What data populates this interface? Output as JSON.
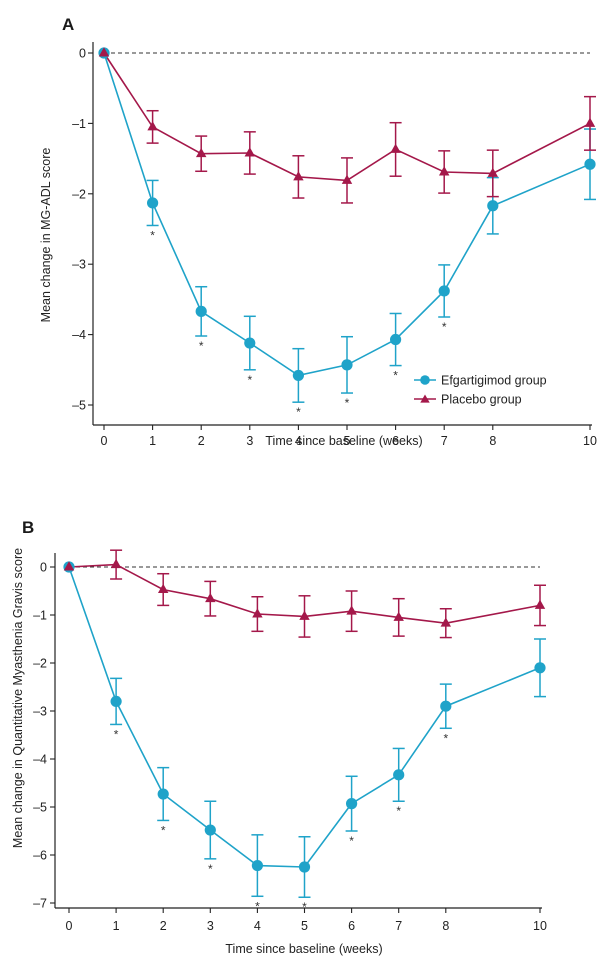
{
  "chart_data": [
    {
      "type": "line",
      "panel_label": "A",
      "xlabel": "Time since baseline (weeks)",
      "ylabel": "Mean change in MG-ADL score",
      "xlim": [
        0,
        10
      ],
      "ylim": [
        -5.3,
        0.1
      ],
      "xticks": [
        0,
        1,
        2,
        3,
        4,
        5,
        6,
        7,
        8,
        10
      ],
      "yticks": [
        0,
        -1,
        -2,
        -3,
        -4,
        -5
      ],
      "x": [
        0,
        1,
        2,
        3,
        4,
        5,
        6,
        7,
        8,
        10
      ],
      "reference_line": 0,
      "legend_position": "bottom-right",
      "series": [
        {
          "name": "Efgartigimod group",
          "color": "#1fa3c9",
          "marker": "circle",
          "values": [
            0,
            -2.13,
            -3.67,
            -4.12,
            -4.58,
            -4.43,
            -4.07,
            -3.38,
            -2.17,
            -1.58
          ],
          "error": [
            0,
            0.32,
            0.35,
            0.38,
            0.38,
            0.4,
            0.37,
            0.37,
            0.4,
            0.5
          ],
          "significant": [
            false,
            true,
            true,
            true,
            true,
            true,
            true,
            true,
            false,
            false
          ]
        },
        {
          "name": "Placebo group",
          "color": "#a4184a",
          "marker": "triangle",
          "values": [
            0,
            -1.05,
            -1.43,
            -1.42,
            -1.76,
            -1.81,
            -1.37,
            -1.69,
            -1.71,
            -1.0
          ],
          "error": [
            0,
            0.23,
            0.25,
            0.3,
            0.3,
            0.32,
            0.38,
            0.3,
            0.33,
            0.38
          ]
        }
      ]
    },
    {
      "type": "line",
      "panel_label": "B",
      "xlabel": "Time since baseline (weeks)",
      "ylabel": "Mean change in Quantitative Myasthenia Gravis score",
      "xlim": [
        0,
        10
      ],
      "ylim": [
        -7.4,
        0.1
      ],
      "xticks": [
        0,
        1,
        2,
        3,
        4,
        5,
        6,
        7,
        8,
        10
      ],
      "yticks": [
        0,
        -1,
        -2,
        -3,
        -4,
        -5,
        -6,
        -7
      ],
      "x": [
        0,
        1,
        2,
        3,
        4,
        5,
        6,
        7,
        8,
        10
      ],
      "reference_line": 0,
      "series": [
        {
          "name": "Efgartigimod group",
          "color": "#1fa3c9",
          "marker": "circle",
          "values": [
            0,
            -2.8,
            -4.73,
            -5.48,
            -6.22,
            -6.25,
            -4.93,
            -4.33,
            -2.9,
            -2.1
          ],
          "error": [
            0,
            0.48,
            0.55,
            0.6,
            0.64,
            0.63,
            0.57,
            0.55,
            0.46,
            0.6
          ],
          "significant": [
            false,
            true,
            true,
            true,
            true,
            true,
            true,
            true,
            true,
            false
          ]
        },
        {
          "name": "Placebo group",
          "color": "#a4184a",
          "marker": "triangle",
          "values": [
            0,
            0.05,
            -0.47,
            -0.66,
            -0.98,
            -1.03,
            -0.92,
            -1.05,
            -1.17,
            -0.8
          ],
          "error": [
            0,
            0.3,
            0.33,
            0.36,
            0.36,
            0.43,
            0.42,
            0.39,
            0.3,
            0.42
          ]
        }
      ]
    }
  ]
}
